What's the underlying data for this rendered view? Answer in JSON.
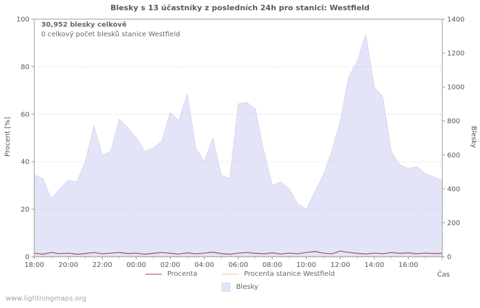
{
  "title": "Blesky s 13 účastníky z posledních 24h pro stanici: Westfield",
  "annotations": {
    "total": "30,952 blesky celkově",
    "station_total": "0 celkový počet blesků stanice Westfield"
  },
  "axes": {
    "left_label": "Procent  [%]",
    "right_label": "Blesky",
    "x_label": "Čas"
  },
  "legend": {
    "procenta": "Procenta",
    "procenta_westfield": "Procenta stanice Westfield",
    "blesky": "Blesky"
  },
  "watermark": "www.lightningmaps.org",
  "colors": {
    "grid": "#c4c4c4",
    "axis": "#999999",
    "text": "#555555"
  },
  "chart_data": {
    "type": "area",
    "title": "Blesky s 13 účastníky z posledních 24h pro stanici: Westfield",
    "x_tick_labels": [
      "18:00",
      "20:00",
      "22:00",
      "00:00",
      "02:00",
      "04:00",
      "06:00",
      "08:00",
      "10:00",
      "12:00",
      "14:00",
      "16:00"
    ],
    "x_range_hours": 24,
    "y_left": {
      "label": "Procent [%]",
      "ticks": [
        0,
        20,
        40,
        60,
        80,
        100
      ],
      "range": [
        0,
        100
      ]
    },
    "y_right": {
      "label": "Blesky",
      "ticks": [
        0,
        200,
        400,
        600,
        800,
        1000,
        1200,
        1400
      ],
      "range": [
        0,
        1400
      ]
    },
    "grid": true,
    "legend_position": "bottom",
    "series": [
      {
        "name": "Blesky",
        "type": "area",
        "axis": "right",
        "fill": "#e4e4f8",
        "edge": "#d6d6f0",
        "values": [
          480,
          460,
          340,
          400,
          450,
          440,
          560,
          770,
          600,
          620,
          810,
          760,
          700,
          620,
          640,
          680,
          850,
          800,
          960,
          640,
          560,
          700,
          480,
          460,
          900,
          910,
          870,
          620,
          420,
          440,
          400,
          310,
          280,
          380,
          480,
          620,
          800,
          1060,
          1150,
          1310,
          1000,
          940,
          620,
          540,
          520,
          530,
          490,
          470,
          450
        ]
      },
      {
        "name": "Procenta",
        "type": "line",
        "axis": "left",
        "color": "#b04545",
        "values": [
          1.5,
          1.0,
          1.8,
          1.2,
          1.5,
          1.0,
          1.3,
          1.8,
          1.2,
          1.5,
          1.8,
          1.3,
          1.5,
          1.0,
          1.4,
          1.8,
          1.4,
          1.1,
          1.6,
          1.2,
          1.5,
          1.9,
          1.3,
          1.0,
          1.5,
          1.8,
          1.4,
          1.2,
          1.6,
          1.1,
          1.5,
          1.2,
          1.8,
          2.2,
          1.5,
          1.2,
          2.4,
          1.8,
          1.4,
          1.1,
          1.5,
          1.2,
          1.8,
          1.4,
          1.6,
          1.2,
          1.5,
          1.3,
          1.4
        ]
      },
      {
        "name": "Procenta stanice Westfield",
        "type": "line",
        "axis": "left",
        "color": "#f2bcbc",
        "values": [
          0,
          0,
          0,
          0,
          0,
          0,
          0,
          0,
          0,
          0,
          0,
          0,
          0,
          0,
          0,
          0,
          0,
          0,
          0,
          0,
          0,
          0,
          0,
          0,
          0,
          0,
          0,
          0,
          0,
          0,
          0,
          0,
          0,
          0,
          0,
          0,
          0,
          0,
          0,
          0,
          0,
          0,
          0,
          0,
          0,
          0,
          0,
          0,
          0
        ]
      }
    ]
  }
}
